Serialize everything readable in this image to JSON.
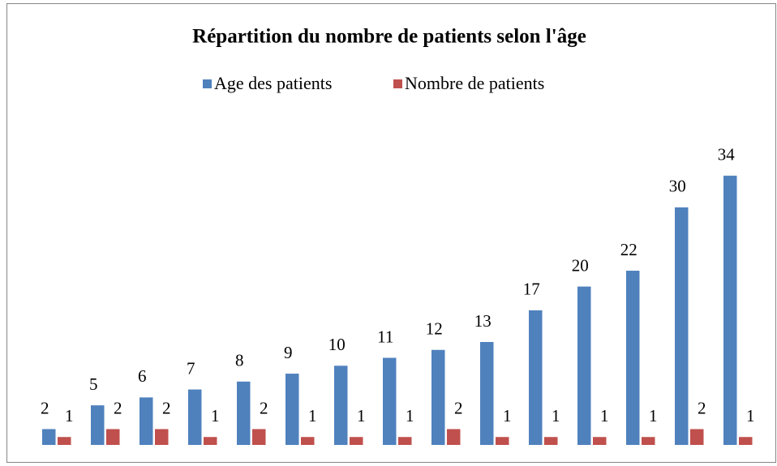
{
  "chart_data": {
    "type": "bar",
    "title": "Répartition du nombre de patients selon l'âge",
    "categories": [
      null,
      null,
      null,
      null,
      null,
      null,
      null,
      null,
      null,
      null,
      null,
      null,
      null,
      null,
      null
    ],
    "series": [
      {
        "name": "Age des patients",
        "color": "#4f81bd",
        "values": [
          2,
          5,
          6,
          7,
          8,
          9,
          10,
          11,
          12,
          13,
          17,
          20,
          22,
          30,
          34
        ]
      },
      {
        "name": "Nombre de patients",
        "color": "#c0504d",
        "values": [
          1,
          2,
          2,
          1,
          2,
          1,
          1,
          1,
          2,
          1,
          1,
          1,
          1,
          2,
          1
        ]
      }
    ],
    "ylim": [
      0,
      35
    ],
    "legend": "top",
    "grid": false
  }
}
